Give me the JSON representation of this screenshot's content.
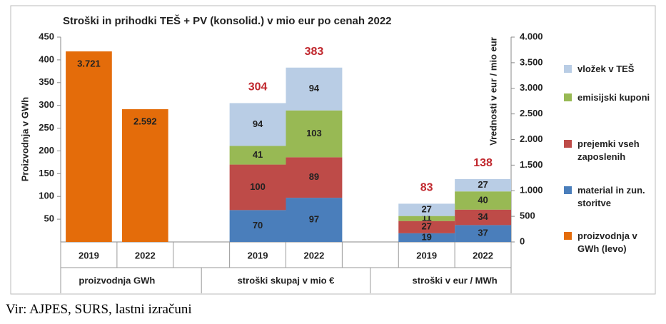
{
  "chart_data": {
    "type": "stacked-bar",
    "title": "Stroški in prihodki TEŠ + PV (konsolid.) v mio eur po cenah 2022",
    "ylabel": "Proizvodnja v GWh",
    "y2label": "Vrednosti v eur / mio eur",
    "categories": [
      "2019",
      "2022",
      null,
      "2019",
      "2022",
      null,
      "2019",
      "2022"
    ],
    "groups": [
      "proizvodnja GWh",
      "stroški skupaj v mio €",
      "stroški v eur / MWh"
    ],
    "ylim": [
      0,
      450
    ],
    "yticks": [
      50,
      100,
      150,
      200,
      250,
      300,
      350,
      400,
      450
    ],
    "y2lim": [
      0,
      4000
    ],
    "y2ticks": [
      0,
      500,
      {
        "value": 1000,
        "label": "1.000"
      },
      {
        "value": 1500,
        "label": "1.500"
      },
      {
        "value": 2000,
        "label": "2.000"
      },
      {
        "value": 2500,
        "label": "2.500"
      },
      {
        "value": 3000,
        "label": "3.000"
      },
      {
        "value": 3500,
        "label": "3.500"
      },
      {
        "value": 4000,
        "label": "4.000"
      }
    ],
    "series": [
      {
        "name": "proizvodnja v GWh (levo)",
        "color": "#e46c0a",
        "axis": "y2",
        "values": [
          3721,
          2592,
          null,
          null,
          null,
          null,
          null,
          null
        ],
        "value_labels": [
          "3.721",
          "2.592",
          null,
          null,
          null,
          null,
          null,
          null
        ]
      },
      {
        "name": "material in zun. storitve",
        "color": "#4a7ebb",
        "values": [
          null,
          null,
          null,
          70,
          97,
          null,
          19,
          37
        ]
      },
      {
        "name": "prejemki vseh zaposlenih",
        "color": "#be4b48",
        "values": [
          null,
          null,
          null,
          100,
          89,
          null,
          27,
          34
        ]
      },
      {
        "name": "emisijski kuponi",
        "color": "#98b954",
        "values": [
          null,
          null,
          null,
          41,
          103,
          null,
          11,
          40
        ]
      },
      {
        "name": "vložek v TEŠ",
        "color": "#b9cde5",
        "values": [
          null,
          null,
          null,
          94,
          94,
          null,
          27,
          27
        ]
      }
    ],
    "totals": [
      null,
      null,
      null,
      304,
      383,
      null,
      83,
      138
    ],
    "totals_color": "#c0272d"
  },
  "source": "Vir: AJPES, SURS, lastni izračuni"
}
